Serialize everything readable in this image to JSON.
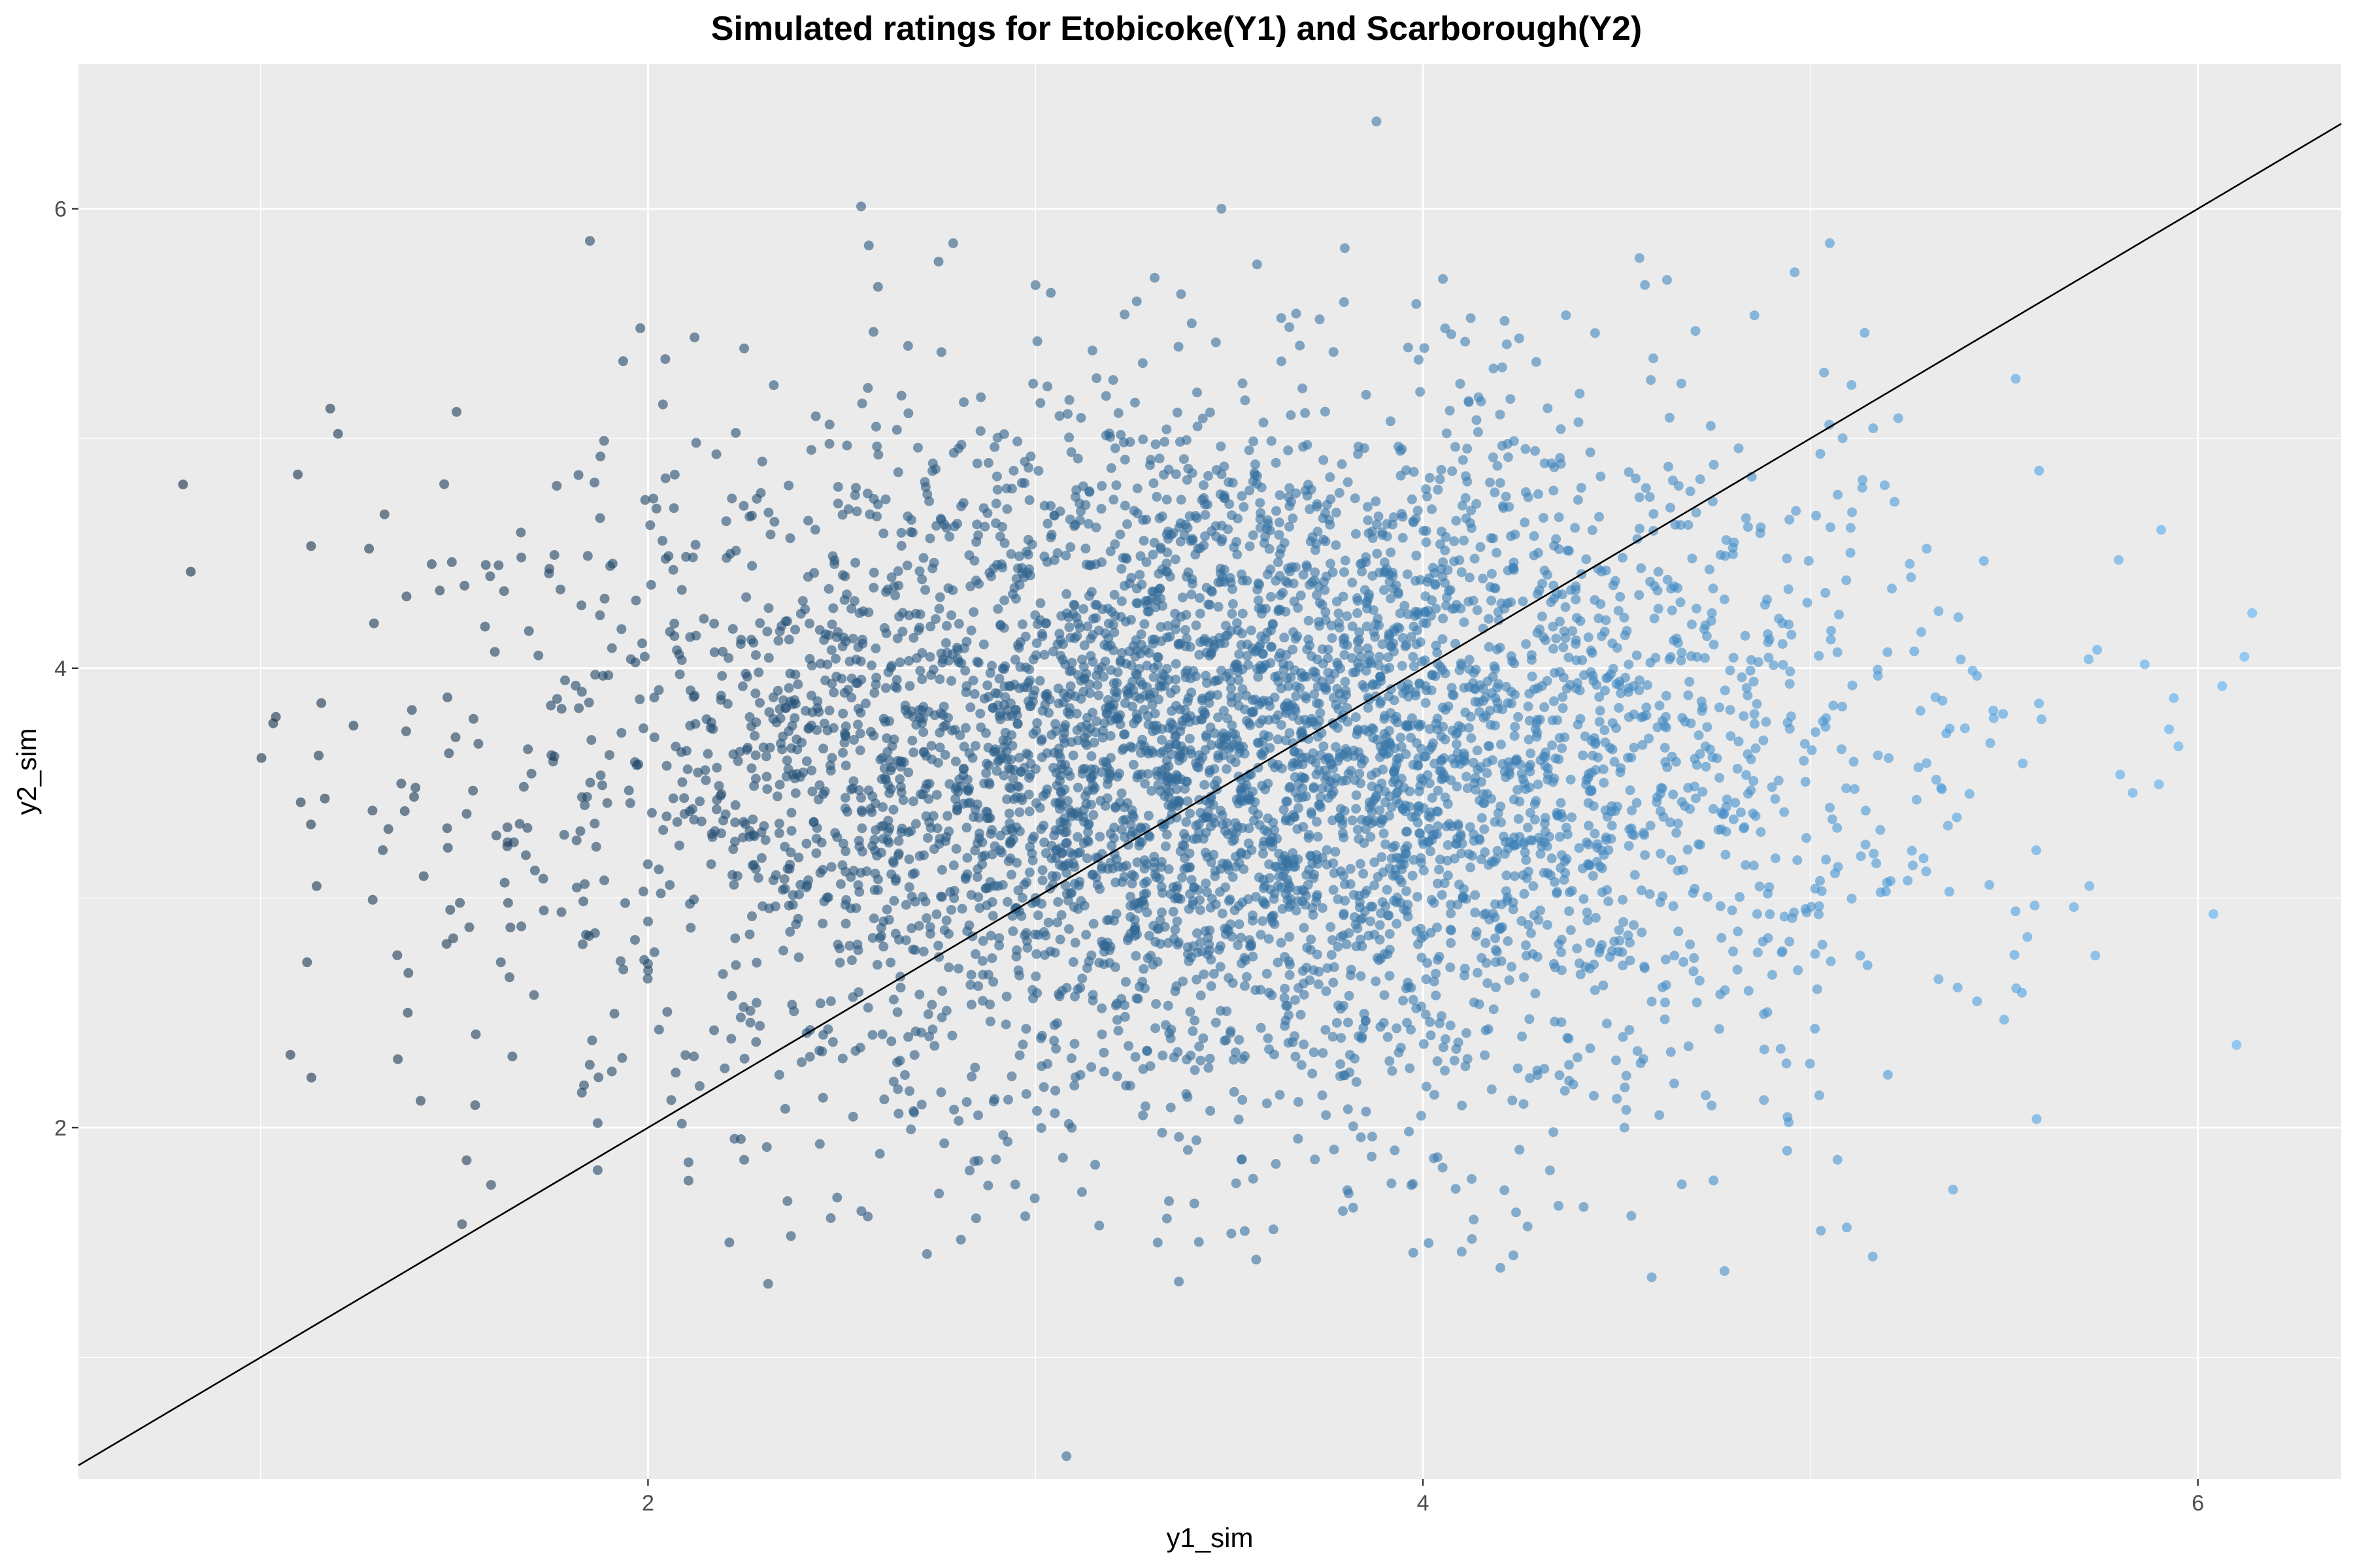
{
  "chart_data": {
    "type": "scatter",
    "title": "Simulated ratings for Etobicoke(Y1) and Scarborough(Y2)",
    "xlabel": "y1_sim",
    "ylabel": "y2_sim",
    "xlim": [
      0.53,
      6.37
    ],
    "ylim": [
      0.47,
      6.63
    ],
    "x_ticks": [
      2,
      4,
      6
    ],
    "y_ticks": [
      2,
      4,
      6
    ],
    "x_tick_labels": [
      "2",
      "4",
      "6"
    ],
    "y_tick_labels": [
      "2",
      "4",
      "6"
    ],
    "grid": true,
    "legend": "none",
    "reference_line": {
      "slope": 1,
      "intercept": 0
    },
    "point_color_low": "#132b43",
    "point_color_high": "#56b1f7",
    "panel_background": "#ebebeb",
    "grid_color": "#ffffff",
    "point_count": 5000,
    "x_distribution": {
      "mean": 3.5,
      "sd": 0.8
    },
    "y_distribution": {
      "mean": 3.6,
      "sd": 0.75
    },
    "x": [
      0.8,
      0.82,
      1.13,
      1.12,
      1.18,
      1.2,
      1.15,
      1.24,
      1.28,
      1.32,
      1.33,
      1.4,
      1.38,
      1.48,
      1.52,
      1.62,
      1.65,
      1.85,
      1.87,
      1.98,
      2.06,
      2.12,
      2.21,
      2.31,
      2.36,
      2.57,
      2.55,
      2.72,
      2.75,
      3.08,
      3.48,
      3.54,
      3.88,
      3.97,
      4.1,
      4.2,
      4.27,
      4.35,
      4.52,
      4.63,
      4.75,
      4.94,
      5.07,
      5.14,
      5.2,
      5.38,
      5.5,
      5.53,
      5.59,
      5.68,
      5.74,
      5.95,
      6.04,
      6.1,
      6.14,
      6.12,
      5.56,
      5.05,
      3.23,
      3.37,
      3.41,
      3.12,
      4.88,
      4.69,
      5.3,
      5.43
    ],
    "y": [
      4.8,
      4.42,
      3.32,
      2.72,
      5.13,
      5.02,
      3.62,
      3.75,
      4.52,
      4.67,
      3.3,
      3.48,
      2.5,
      2.8,
      1.58,
      2.72,
      2.31,
      5.86,
      2.02,
      5.48,
      2.12,
      5.44,
      1.5,
      1.32,
      1.68,
      5.84,
      6.01,
      1.45,
      5.77,
      0.57,
      6.0,
      1.55,
      6.38,
      1.75,
      1.46,
      1.39,
      1.57,
      1.66,
      2.0,
      5.69,
      1.77,
      1.9,
      1.86,
      5.46,
      2.23,
      2.61,
      2.47,
      5.26,
      4.86,
      2.96,
      4.08,
      3.66,
      2.93,
      2.36,
      4.24,
      4.05,
      2.83,
      5.85,
      5.54,
      1.33,
      1.67,
      1.72,
      2.12,
      4.77,
      4.52,
      2.55
    ]
  }
}
